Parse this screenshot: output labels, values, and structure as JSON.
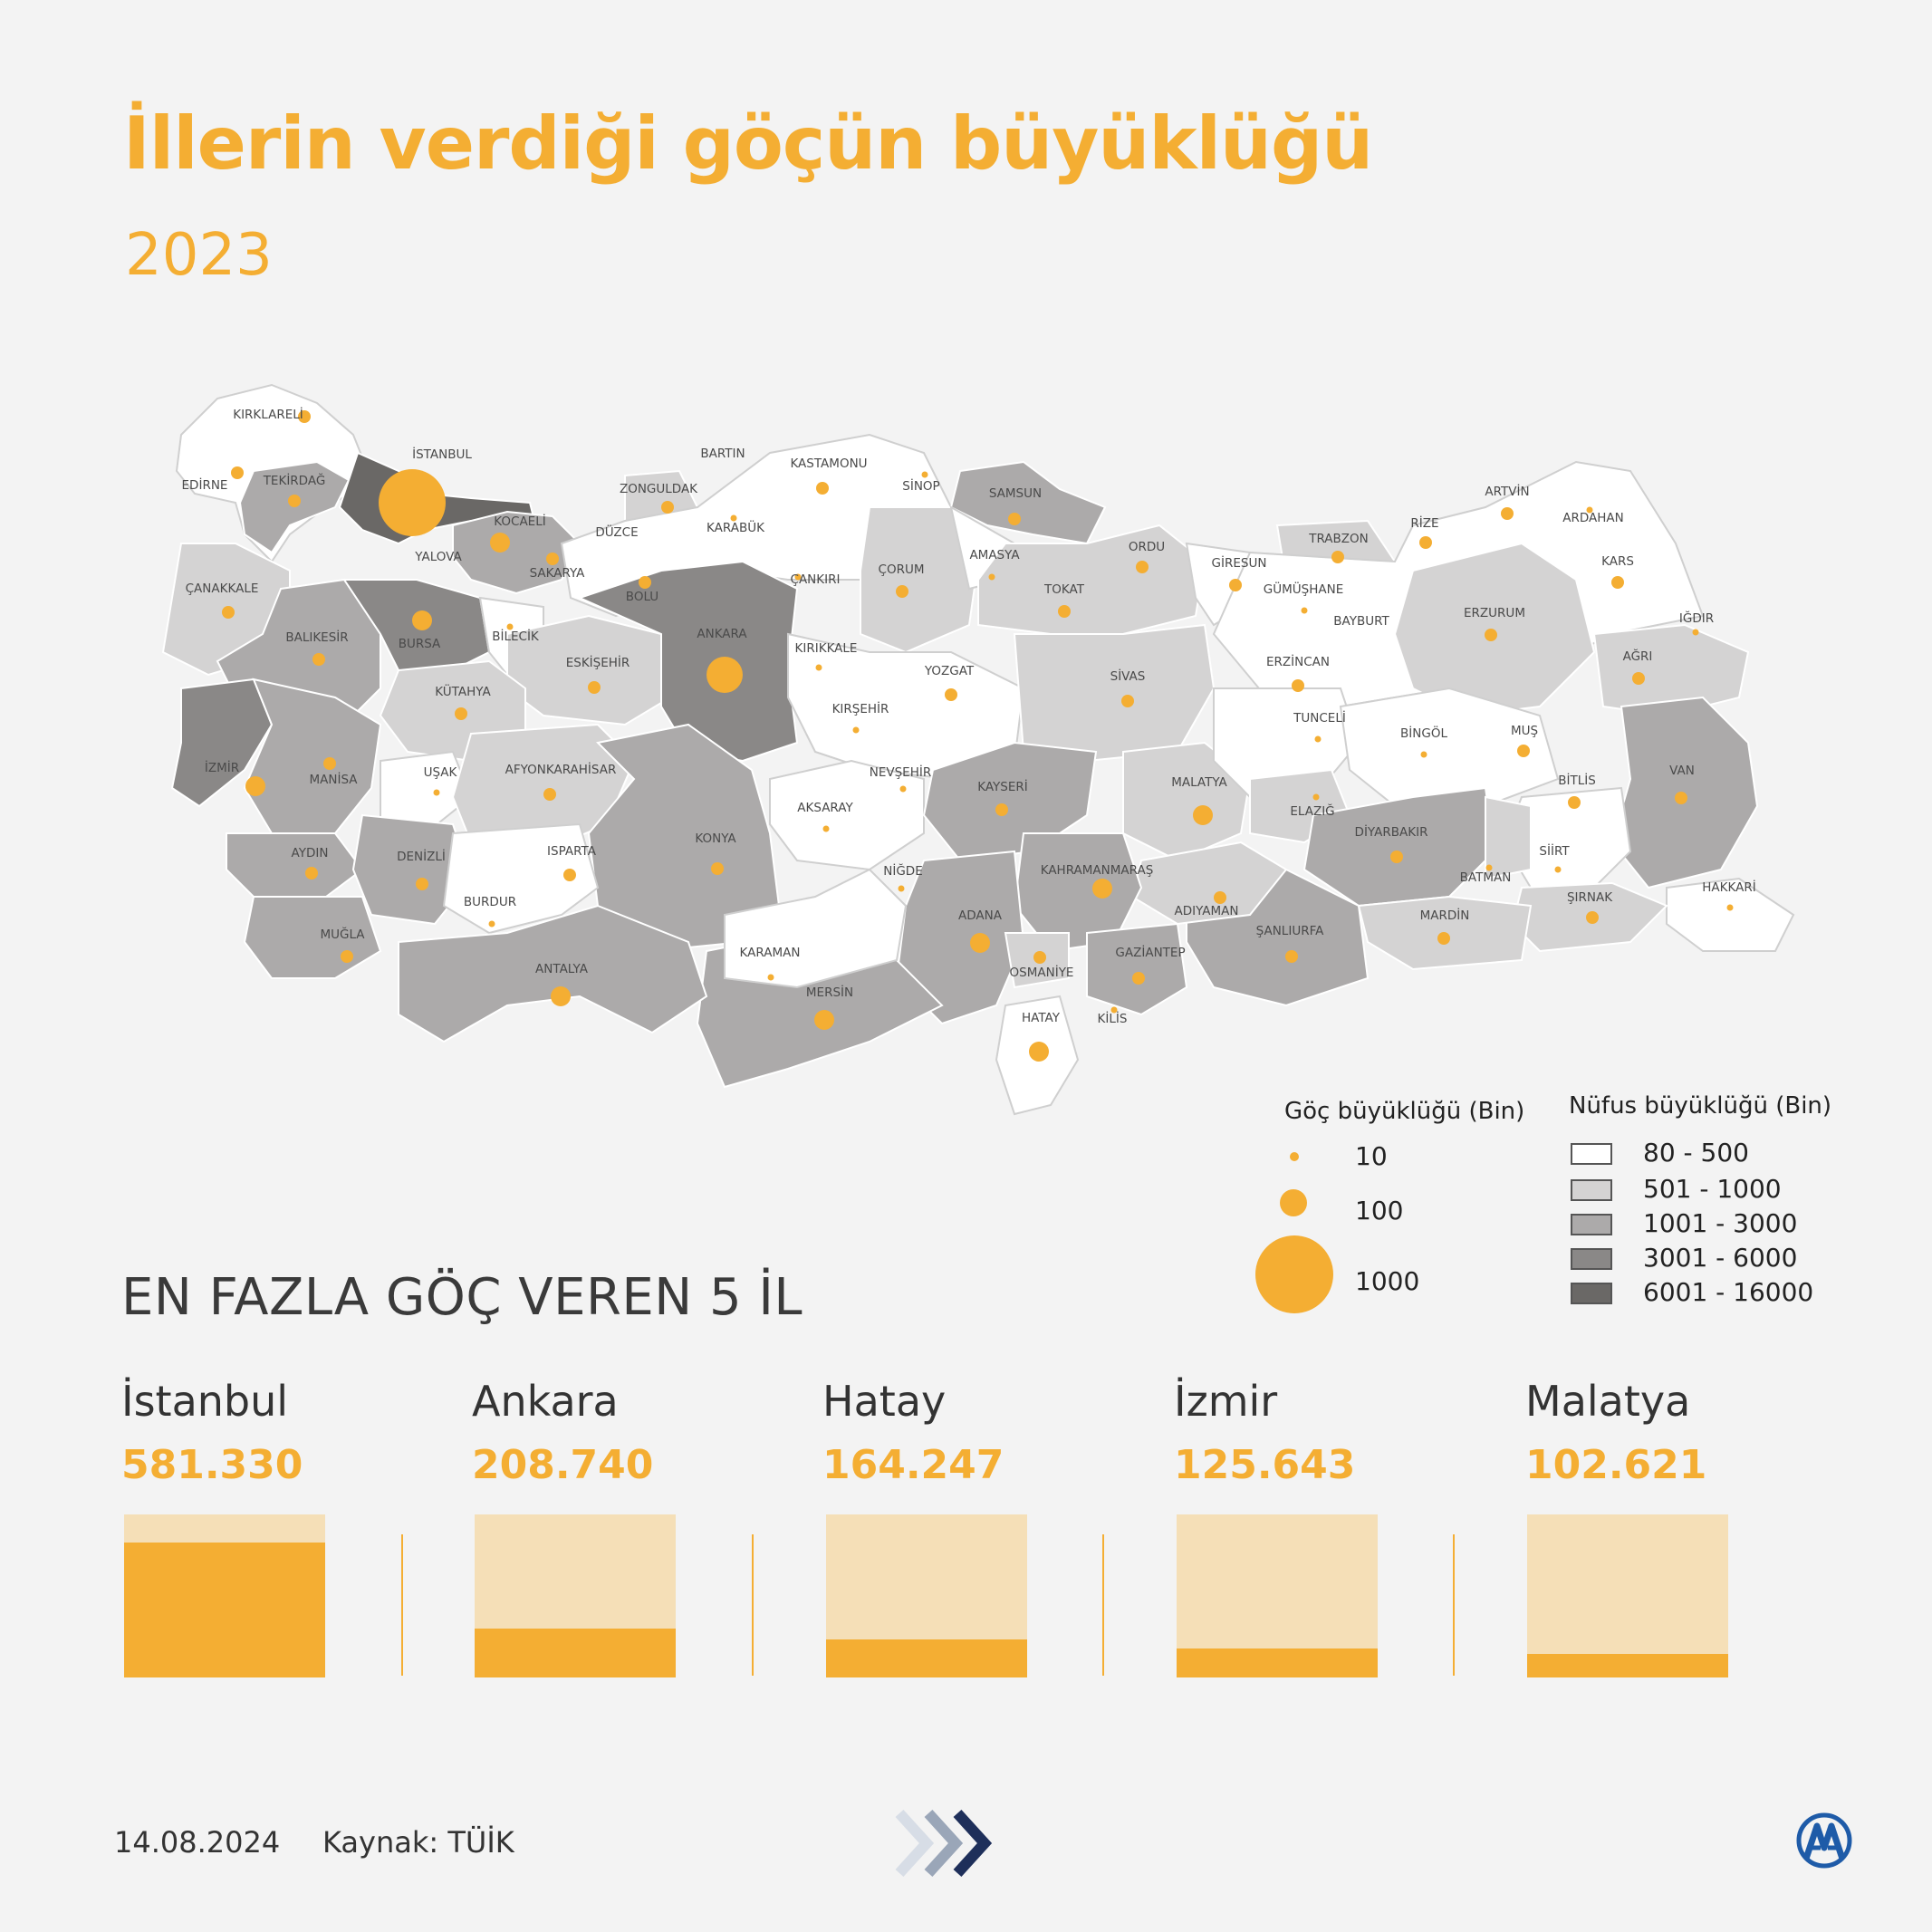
{
  "title": "İllerin verdiği göçün büyüklüğü",
  "year": "2023",
  "colors": {
    "accent": "#f4ae33",
    "accent_light": "#f5dfb7",
    "pop_80_500": "#ffffff",
    "pop_501_1000": "#d4d3d3",
    "pop_1001_3000": "#acaaaa",
    "pop_3001_6000": "#8a8887",
    "pop_6001_16000": "#6a6866"
  },
  "map_data": {
    "provinces": [
      {
        "name": "KIRKLARELİ",
        "migration_class": "small",
        "population_class": "80 - 500"
      },
      {
        "name": "EDİRNE",
        "migration_class": "small",
        "population_class": "80 - 500"
      },
      {
        "name": "TEKİRDAĞ",
        "migration_class": "small",
        "population_class": "1001 - 3000"
      },
      {
        "name": "İSTANBUL",
        "migration_class": "1000",
        "population_class": "6001 - 16000"
      },
      {
        "name": "KOCAELİ",
        "migration_class": "medium",
        "population_class": "1001 - 3000"
      },
      {
        "name": "SAKARYA",
        "migration_class": "small",
        "population_class": "1001 - 3000"
      },
      {
        "name": "YALOVA",
        "migration_class": "none",
        "population_class": "80 - 500"
      },
      {
        "name": "ÇANAKKALE",
        "migration_class": "small",
        "population_class": "501 - 1000"
      },
      {
        "name": "BALIKESİR",
        "migration_class": "small",
        "population_class": "1001 - 3000"
      },
      {
        "name": "BURSA",
        "migration_class": "medium",
        "population_class": "3001 - 6000"
      },
      {
        "name": "BİLECİK",
        "migration_class": "tiny",
        "population_class": "80 - 500"
      },
      {
        "name": "ZONGULDAK",
        "migration_class": "small",
        "population_class": "501 - 1000"
      },
      {
        "name": "BARTIN",
        "migration_class": "none",
        "population_class": "80 - 500"
      },
      {
        "name": "KARABÜK",
        "migration_class": "tiny",
        "population_class": "80 - 500"
      },
      {
        "name": "DÜZCE",
        "migration_class": "none",
        "population_class": "80 - 500"
      },
      {
        "name": "BOLU",
        "migration_class": "small",
        "population_class": "80 - 500"
      },
      {
        "name": "KASTAMONU",
        "migration_class": "small",
        "population_class": "80 - 500"
      },
      {
        "name": "SİNOP",
        "migration_class": "tiny",
        "population_class": "80 - 500"
      },
      {
        "name": "SAMSUN",
        "migration_class": "small",
        "population_class": "1001 - 3000"
      },
      {
        "name": "ÇANKIRI",
        "migration_class": "tiny",
        "population_class": "80 - 500"
      },
      {
        "name": "ÇORUM",
        "migration_class": "small",
        "population_class": "501 - 1000"
      },
      {
        "name": "AMASYA",
        "migration_class": "tiny",
        "population_class": "80 - 500"
      },
      {
        "name": "TOKAT",
        "migration_class": "small",
        "population_class": "501 - 1000"
      },
      {
        "name": "ORDU",
        "migration_class": "small",
        "population_class": "501 - 1000"
      },
      {
        "name": "GİRESUN",
        "migration_class": "small",
        "population_class": "80 - 500"
      },
      {
        "name": "TRABZON",
        "migration_class": "small",
        "population_class": "501 - 1000"
      },
      {
        "name": "RİZE",
        "migration_class": "small",
        "population_class": "80 - 500"
      },
      {
        "name": "ARTVİN",
        "migration_class": "small",
        "population_class": "80 - 500"
      },
      {
        "name": "ARDAHAN",
        "migration_class": "tiny",
        "population_class": "80 - 500"
      },
      {
        "name": "KARS",
        "migration_class": "small",
        "population_class": "80 - 500"
      },
      {
        "name": "IĞDIR",
        "migration_class": "tiny",
        "population_class": "80 - 500"
      },
      {
        "name": "AĞRI",
        "migration_class": "small",
        "population_class": "501 - 1000"
      },
      {
        "name": "ERZURUM",
        "migration_class": "small",
        "population_class": "501 - 1000"
      },
      {
        "name": "GÜMÜŞHANE",
        "migration_class": "tiny",
        "population_class": "80 - 500"
      },
      {
        "name": "BAYBURT",
        "migration_class": "none",
        "population_class": "80 - 500"
      },
      {
        "name": "ERZİNCAN",
        "migration_class": "small",
        "population_class": "80 - 500"
      },
      {
        "name": "TUNCELİ",
        "migration_class": "tiny",
        "population_class": "80 - 500"
      },
      {
        "name": "BİNGÖL",
        "migration_class": "tiny",
        "population_class": "80 - 500"
      },
      {
        "name": "MUŞ",
        "migration_class": "small",
        "population_class": "80 - 500"
      },
      {
        "name": "BİTLİS",
        "migration_class": "small",
        "population_class": "80 - 500"
      },
      {
        "name": "VAN",
        "migration_class": "small",
        "population_class": "1001 - 3000"
      },
      {
        "name": "HAKKARİ",
        "migration_class": "tiny",
        "population_class": "80 - 500"
      },
      {
        "name": "ŞIRNAK",
        "migration_class": "small",
        "population_class": "501 - 1000"
      },
      {
        "name": "SİİRT",
        "migration_class": "tiny",
        "population_class": "80 - 500"
      },
      {
        "name": "BATMAN",
        "migration_class": "tiny",
        "population_class": "501 - 1000"
      },
      {
        "name": "MARDİN",
        "migration_class": "small",
        "population_class": "501 - 1000"
      },
      {
        "name": "DİYARBAKIR",
        "migration_class": "small",
        "population_class": "1001 - 3000"
      },
      {
        "name": "ELAZIĞ",
        "migration_class": "tiny",
        "population_class": "501 - 1000"
      },
      {
        "name": "MALATYA",
        "migration_class": "medium",
        "population_class": "501 - 1000"
      },
      {
        "name": "SİVAS",
        "migration_class": "small",
        "population_class": "501 - 1000"
      },
      {
        "name": "YOZGAT",
        "migration_class": "small",
        "population_class": "80 - 500"
      },
      {
        "name": "KIRIKKALE",
        "migration_class": "tiny",
        "population_class": "80 - 500"
      },
      {
        "name": "ANKARA",
        "migration_class": "large",
        "population_class": "3001 - 6000"
      },
      {
        "name": "ESKİŞEHİR",
        "migration_class": "small",
        "population_class": "501 - 1000"
      },
      {
        "name": "KÜTAHYA",
        "migration_class": "small",
        "population_class": "501 - 1000"
      },
      {
        "name": "MANİSA",
        "migration_class": "small",
        "population_class": "1001 - 3000"
      },
      {
        "name": "İZMİR",
        "migration_class": "medium",
        "population_class": "3001 - 6000"
      },
      {
        "name": "UŞAK",
        "migration_class": "tiny",
        "population_class": "80 - 500"
      },
      {
        "name": "AFYONKARAHİSAR",
        "migration_class": "small",
        "population_class": "501 - 1000"
      },
      {
        "name": "KIRŞEHİR",
        "migration_class": "tiny",
        "population_class": "80 - 500"
      },
      {
        "name": "NEVŞEHİR",
        "migration_class": "tiny",
        "population_class": "80 - 500"
      },
      {
        "name": "KAYSERİ",
        "migration_class": "small",
        "population_class": "1001 - 3000"
      },
      {
        "name": "AKSARAY",
        "migration_class": "tiny",
        "population_class": "80 - 500"
      },
      {
        "name": "KONYA",
        "migration_class": "small",
        "population_class": "1001 - 3000"
      },
      {
        "name": "AYDIN",
        "migration_class": "small",
        "population_class": "1001 - 3000"
      },
      {
        "name": "DENİZLİ",
        "migration_class": "small",
        "population_class": "1001 - 3000"
      },
      {
        "name": "ISPARTA",
        "migration_class": "small",
        "population_class": "80 - 500"
      },
      {
        "name": "BURDUR",
        "migration_class": "tiny",
        "population_class": "80 - 500"
      },
      {
        "name": "MUĞLA",
        "migration_class": "small",
        "population_class": "501 - 1000"
      },
      {
        "name": "ANTALYA",
        "migration_class": "medium",
        "population_class": "1001 - 3000"
      },
      {
        "name": "KARAMAN",
        "migration_class": "tiny",
        "population_class": "80 - 500"
      },
      {
        "name": "MERSİN",
        "migration_class": "medium",
        "population_class": "1001 - 3000"
      },
      {
        "name": "NİĞDE",
        "migration_class": "tiny",
        "population_class": "80 - 500"
      },
      {
        "name": "ADANA",
        "migration_class": "medium",
        "population_class": "1001 - 3000"
      },
      {
        "name": "OSMANİYE",
        "migration_class": "small",
        "population_class": "501 - 1000"
      },
      {
        "name": "KAHRAMANMARAŞ",
        "migration_class": "medium",
        "population_class": "1001 - 3000"
      },
      {
        "name": "HATAY",
        "migration_class": "medium",
        "population_class": "80 - 500"
      },
      {
        "name": "KİLİS",
        "migration_class": "tiny",
        "population_class": "80 - 500"
      },
      {
        "name": "GAZİANTEP",
        "migration_class": "small",
        "population_class": "1001 - 3000"
      },
      {
        "name": "ADIYAMAN",
        "migration_class": "small",
        "population_class": "501 - 1000"
      },
      {
        "name": "ŞANLIURFA",
        "migration_class": "small",
        "population_class": "1001 - 3000"
      }
    ]
  },
  "legend": {
    "migration_title": "Göç büyüklüğü (Bin)",
    "migration_items": [
      "10",
      "100",
      "1000"
    ],
    "population_title": "Nüfus büyüklüğü (Bin)",
    "population_items": [
      "80 - 500",
      "501 - 1000",
      "1001 - 3000",
      "3001 - 6000",
      "6001 - 16000"
    ]
  },
  "top5": {
    "heading": "EN FAZLA GÖÇ VEREN 5 İL",
    "max_value": 700000,
    "items": [
      {
        "name": "İstanbul",
        "value_label": "581.330",
        "value": 581330
      },
      {
        "name": "Ankara",
        "value_label": "208.740",
        "value": 208740
      },
      {
        "name": "Hatay",
        "value_label": "164.247",
        "value": 164247
      },
      {
        "name": "İzmir",
        "value_label": "125.643",
        "value": 125643
      },
      {
        "name": "Malatya",
        "value_label": "102.621",
        "value": 102621
      }
    ]
  },
  "footer": {
    "date": "14.08.2024",
    "source": "Kaynak: TÜİK"
  }
}
